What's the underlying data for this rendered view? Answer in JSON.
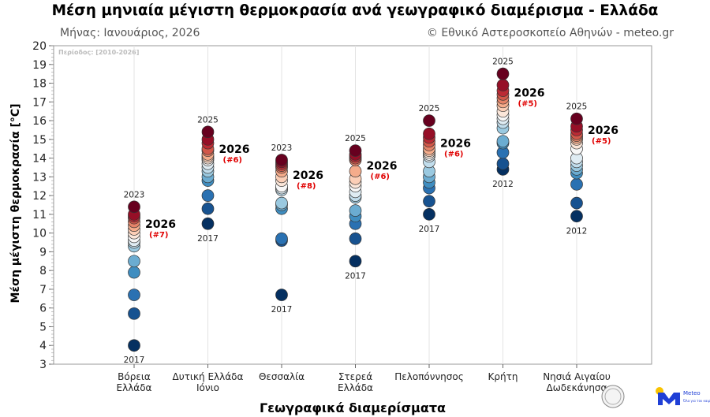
{
  "title": "Μέση μηνιαία μέγιστη θερμοκρασία ανά γεωγραφικό διαμέρισμα - Ελλάδα",
  "subtitle_left": "Μήνας: Ιανουάριος, 2026",
  "subtitle_right": "© Εθνικό Αστεροσκοπείο Αθηνών - meteo.gr",
  "period_note": "Περίοδος: [2010-2026]",
  "logos": {
    "observatory_seal": "Εθνικό Αστεροσκοπείο Αθηνών",
    "meteo": "Meteo",
    "meteo_tagline": "Όλα για τον καιρό"
  },
  "chart_data": {
    "type": "scatter",
    "title": "Μέση μηνιαία μέγιστη θερμοκρασία ανά γεωγραφικό διαμέρισμα - Ελλάδα",
    "xlabel": "Γεωγραφικά διαμερίσματα",
    "ylabel": "Μέση μέγιστη θερμοκρασία [°C]",
    "ylim": [
      3,
      20
    ],
    "yticks": [
      3,
      4,
      5,
      6,
      7,
      8,
      9,
      10,
      11,
      12,
      13,
      14,
      15,
      16,
      17,
      18,
      19,
      20
    ],
    "grid": "vertical",
    "colormap": [
      "#053061",
      "#2166ac",
      "#4393c3",
      "#92c5de",
      "#d1e5f0",
      "#f7f7f7",
      "#fddbc7",
      "#f4a582",
      "#d6604d",
      "#b2182b",
      "#67001f"
    ],
    "highlight_year": "2026",
    "regions": [
      {
        "name": "Βόρεια\nΕλλάδα",
        "values": [
          4.0,
          5.7,
          6.7,
          7.9,
          8.5,
          9.3,
          9.5,
          9.6,
          9.8,
          10.0,
          10.2,
          10.4,
          10.6,
          10.8,
          10.9,
          11.0,
          11.4
        ],
        "max_year": "2023",
        "min_year": "2017",
        "value_2026": 10.2,
        "rank_label": "(#7)"
      },
      {
        "name": "Δυτική Ελλάδα\nΙόνιο",
        "values": [
          10.5,
          11.3,
          12.0,
          12.8,
          13.0,
          13.3,
          13.5,
          13.7,
          13.9,
          14.0,
          14.1,
          14.2,
          14.4,
          14.5,
          14.8,
          15.0,
          15.4
        ],
        "max_year": "2025",
        "min_year": "2017",
        "value_2026": 14.2,
        "rank_label": "(#6)"
      },
      {
        "name": "Θεσσαλία",
        "values": [
          6.7,
          9.6,
          9.7,
          11.3,
          11.5,
          11.6,
          12.3,
          12.4,
          12.5,
          12.8,
          13.0,
          13.3,
          13.5,
          13.6,
          13.7,
          13.8,
          13.9
        ],
        "max_year": "2023",
        "min_year": "2017",
        "value_2026": 12.8,
        "rank_label": "(#8)"
      },
      {
        "name": "Στερεά\nΕλλάδα",
        "values": [
          8.5,
          9.7,
          10.5,
          10.9,
          11.2,
          11.9,
          12.0,
          12.2,
          12.5,
          12.7,
          12.9,
          13.3,
          13.9,
          14.0,
          14.1,
          14.2,
          14.4
        ],
        "max_year": "2025",
        "min_year": "2017",
        "value_2026": 13.3,
        "rank_label": "(#6)"
      },
      {
        "name": "Πελοπόννησος",
        "values": [
          11.0,
          11.7,
          12.4,
          12.7,
          13.0,
          13.3,
          13.8,
          14.1,
          14.2,
          14.3,
          14.4,
          14.5,
          14.7,
          14.9,
          15.1,
          15.3,
          16.0
        ],
        "max_year": "2025",
        "min_year": "2017",
        "value_2026": 14.5,
        "rank_label": "(#6)"
      },
      {
        "name": "Κρήτη",
        "values": [
          13.4,
          13.7,
          14.3,
          14.8,
          14.9,
          15.6,
          15.9,
          16.1,
          16.3,
          16.5,
          16.8,
          17.0,
          17.2,
          17.4,
          17.6,
          17.9,
          18.5
        ],
        "max_year": "2025",
        "min_year": "2012",
        "value_2026": 17.2,
        "rank_label": "(#5)"
      },
      {
        "name": "Νησιά Αιγαίου\nΔωδεκάνησα",
        "values": [
          10.9,
          11.6,
          12.6,
          13.2,
          13.4,
          13.6,
          13.8,
          14.0,
          14.5,
          14.8,
          15.0,
          15.1,
          15.2,
          15.3,
          15.5,
          15.7,
          16.1
        ],
        "max_year": "2025",
        "min_year": "2012",
        "value_2026": 15.2,
        "rank_label": "(#5)"
      }
    ]
  }
}
